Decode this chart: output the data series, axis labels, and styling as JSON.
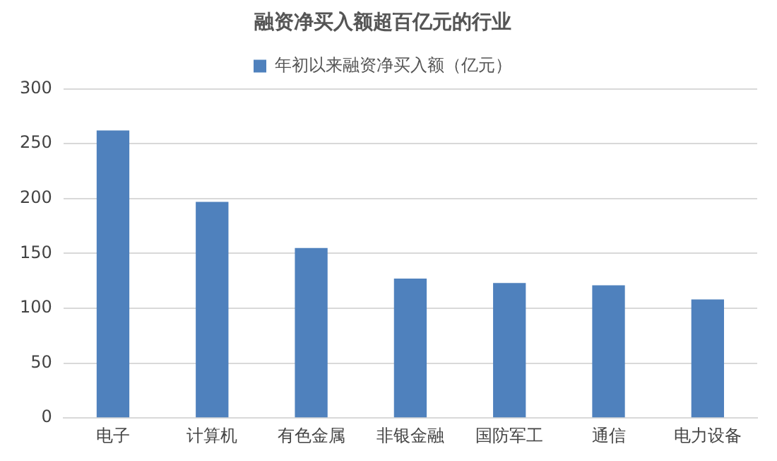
{
  "chart_data": {
    "type": "bar",
    "title": "融资净买入额超百亿元的行业",
    "categories": [
      "电子",
      "计算机",
      "有色金属",
      "非银金融",
      "国防军工",
      "通信",
      "电力设备"
    ],
    "series": [
      {
        "name": "年初以来融资净买入额（亿元）",
        "color": "#4f81bd",
        "values": [
          262,
          197,
          155,
          127,
          123,
          121,
          108
        ]
      }
    ],
    "ylim": [
      0,
      300
    ],
    "yticks": [
      0,
      50,
      100,
      150,
      200,
      250,
      300
    ],
    "grid": "y",
    "legend": "top"
  }
}
